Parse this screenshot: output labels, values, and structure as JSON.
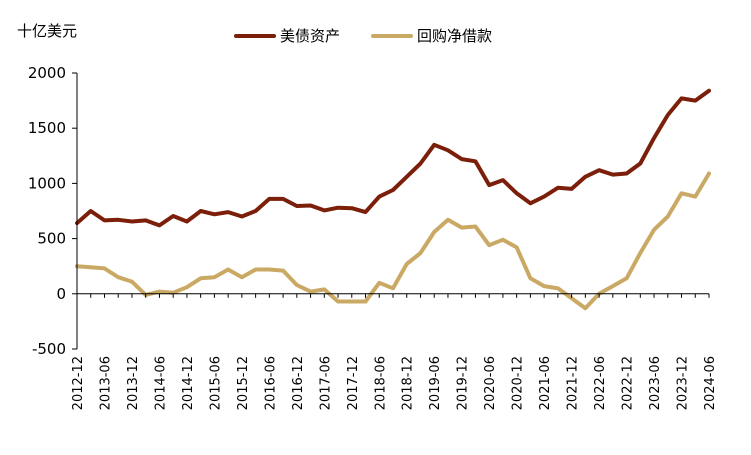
{
  "chart_data": {
    "type": "line",
    "ylabel": "十亿美元",
    "ylim": [
      -500,
      2000
    ],
    "yticks": [
      "2000",
      "1500",
      "1000",
      "500",
      "0",
      "-500"
    ],
    "grid": false,
    "legend_position": "top",
    "x_tick_labels": [
      "2012-12",
      "2013-06",
      "2013-12",
      "2014-06",
      "2014-12",
      "2015-06",
      "2015-12",
      "2016-06",
      "2016-12",
      "2017-06",
      "2017-12",
      "2018-06",
      "2018-12",
      "2019-06",
      "2019-12",
      "2020-06",
      "2020-12",
      "2021-06",
      "2021-12",
      "2022-06",
      "2022-12",
      "2023-06",
      "2023-12",
      "2024-06"
    ],
    "x": [
      "2012-12",
      "2013-03",
      "2013-06",
      "2013-09",
      "2013-12",
      "2014-03",
      "2014-06",
      "2014-09",
      "2014-12",
      "2015-03",
      "2015-06",
      "2015-09",
      "2015-12",
      "2016-03",
      "2016-06",
      "2016-09",
      "2016-12",
      "2017-03",
      "2017-06",
      "2017-09",
      "2017-12",
      "2018-03",
      "2018-06",
      "2018-09",
      "2018-12",
      "2019-03",
      "2019-06",
      "2019-09",
      "2019-12",
      "2020-03",
      "2020-06",
      "2020-09",
      "2020-12",
      "2021-03",
      "2021-06",
      "2021-09",
      "2021-12",
      "2022-03",
      "2022-06",
      "2022-09",
      "2022-12",
      "2023-03",
      "2023-06",
      "2023-09",
      "2023-12",
      "2024-03",
      "2024-06"
    ],
    "series": [
      {
        "name": "美债资产",
        "color": "#7B1E0A",
        "values": [
          640,
          750,
          665,
          670,
          655,
          665,
          620,
          705,
          655,
          750,
          720,
          740,
          700,
          750,
          860,
          860,
          795,
          800,
          755,
          780,
          775,
          740,
          880,
          940,
          1060,
          1180,
          1350,
          1300,
          1220,
          1200,
          985,
          1030,
          910,
          820,
          880,
          960,
          950,
          1060,
          1120,
          1080,
          1090,
          1180,
          1410,
          1620,
          1770,
          1750,
          1840
        ]
      },
      {
        "name": "回购净借款",
        "color": "#C9A964",
        "values": [
          250,
          240,
          230,
          150,
          110,
          -10,
          20,
          10,
          60,
          140,
          150,
          220,
          150,
          220,
          220,
          210,
          80,
          20,
          40,
          -70,
          -70,
          -70,
          100,
          50,
          270,
          370,
          560,
          670,
          600,
          610,
          440,
          490,
          420,
          140,
          70,
          50,
          -40,
          -130,
          0,
          70,
          140,
          370,
          580,
          700,
          910,
          880,
          1090
        ]
      }
    ]
  }
}
